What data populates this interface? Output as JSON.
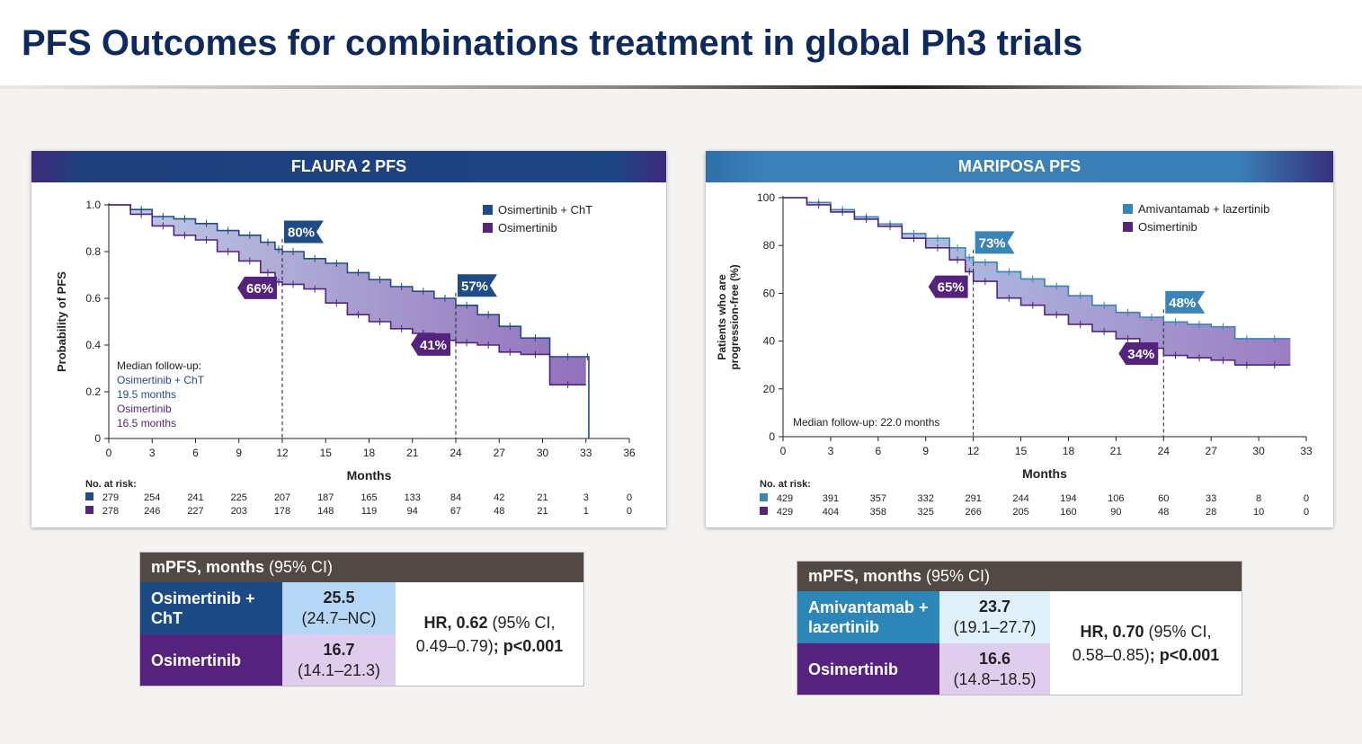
{
  "page": {
    "title": "PFS Outcomes for combinations treatment in global Ph3 trials"
  },
  "colors": {
    "title": "#0e2a5c",
    "flaura_arm1": "#1f4c86",
    "flaura_arm2": "#55237d",
    "mariposa_arm1": "#3a84b8",
    "mariposa_arm2": "#55237d",
    "table_header": "#524945"
  },
  "chart_data": [
    {
      "type": "line",
      "subtype": "kaplan-meier",
      "title": "FLAURA 2 PFS",
      "xlabel": "Months",
      "ylabel": "Probability of PFS",
      "xlim": [
        0,
        36
      ],
      "ylim": [
        0,
        1.0
      ],
      "xticks": [
        0,
        3,
        6,
        9,
        12,
        15,
        18,
        21,
        24,
        27,
        30,
        33,
        36
      ],
      "yticks": [
        "0",
        "0.2",
        "0.4",
        "0.6",
        "0.8",
        "1.0"
      ],
      "ytick_values": [
        0,
        0.2,
        0.4,
        0.6,
        0.8,
        1.0
      ],
      "reference_lines_x": [
        12,
        24
      ],
      "legend_position": "top-right",
      "series": [
        {
          "name": "Osimertinib + ChT",
          "x": [
            0,
            1.5,
            3,
            4.5,
            6,
            7.5,
            9,
            10.5,
            11.5,
            12,
            13.5,
            15,
            16.5,
            18,
            19.5,
            21,
            22.5,
            24,
            25.5,
            27,
            28.5,
            30.5,
            33,
            33.2
          ],
          "y": [
            1.0,
            0.98,
            0.95,
            0.94,
            0.92,
            0.89,
            0.87,
            0.84,
            0.81,
            0.8,
            0.77,
            0.75,
            0.71,
            0.68,
            0.65,
            0.63,
            0.6,
            0.57,
            0.53,
            0.48,
            0.43,
            0.35,
            0.35,
            0.0
          ]
        },
        {
          "name": "Osimertinib",
          "x": [
            0,
            1.5,
            3,
            4.5,
            6,
            7.5,
            9,
            10.5,
            11.5,
            12,
            13.5,
            15,
            16.5,
            18,
            19.5,
            21,
            22.5,
            24,
            25.5,
            27,
            28.5,
            30.5,
            33
          ],
          "y": [
            1.0,
            0.96,
            0.91,
            0.87,
            0.85,
            0.8,
            0.76,
            0.71,
            0.67,
            0.66,
            0.64,
            0.58,
            0.53,
            0.5,
            0.47,
            0.45,
            0.42,
            0.41,
            0.4,
            0.37,
            0.36,
            0.23,
            0.23
          ]
        }
      ],
      "annotations": [
        {
          "text": "80%",
          "series": 0,
          "x": 12
        },
        {
          "text": "66%",
          "series": 1,
          "x": 12
        },
        {
          "text": "57%",
          "series": 0,
          "x": 24
        },
        {
          "text": "41%",
          "series": 1,
          "x": 24
        }
      ],
      "follow_up_lines": [
        "Median follow-up:",
        "Osimertinib + ChT",
        "19.5 months",
        "Osimertinib",
        "16.5 months"
      ],
      "at_risk": {
        "label": "No. at risk:",
        "times": [
          0,
          3,
          6,
          9,
          12,
          15,
          18,
          21,
          24,
          27,
          30,
          33,
          36
        ],
        "rows": [
          {
            "series": 0,
            "values": [
              "279",
              "254",
              "241",
              "225",
              "207",
              "187",
              "165",
              "133",
              "84",
              "42",
              "21",
              "3",
              "0"
            ]
          },
          {
            "series": 1,
            "values": [
              "278",
              "246",
              "227",
              "203",
              "178",
              "148",
              "119",
              "94",
              "67",
              "48",
              "21",
              "1",
              "0"
            ]
          }
        ]
      }
    },
    {
      "type": "line",
      "subtype": "kaplan-meier",
      "title": "MARIPOSA PFS",
      "xlabel": "Months",
      "ylabel": "Patients who are progression-free (%)",
      "ylabel_lines": [
        "Patients who are",
        "progression-free (%)"
      ],
      "xlim": [
        0,
        33
      ],
      "ylim": [
        0,
        100
      ],
      "xticks": [
        0,
        3,
        6,
        9,
        12,
        15,
        18,
        21,
        24,
        27,
        30,
        33
      ],
      "yticks": [
        "0",
        "20",
        "40",
        "60",
        "80",
        "100"
      ],
      "ytick_values": [
        0,
        20,
        40,
        60,
        80,
        100
      ],
      "reference_lines_x": [
        12,
        24
      ],
      "legend_position": "top-right",
      "series": [
        {
          "name": "Amivantamab + lazertinib",
          "x": [
            0,
            1.5,
            3,
            4.5,
            6,
            7.5,
            9,
            10.5,
            11.5,
            12,
            13.5,
            15,
            16.5,
            18,
            19.5,
            21,
            22.5,
            24,
            25.5,
            27,
            28.5,
            30,
            32
          ],
          "y": [
            100,
            98,
            95,
            92,
            89,
            85,
            83,
            79,
            75,
            73,
            69,
            66,
            63,
            59,
            55,
            52,
            50,
            48,
            47,
            46,
            41,
            41,
            41
          ]
        },
        {
          "name": "Osimertinib",
          "x": [
            0,
            1.5,
            3,
            4.5,
            6,
            7.5,
            9,
            10.5,
            11.5,
            12,
            13.5,
            15,
            16.5,
            18,
            19.5,
            21,
            22.5,
            24,
            25.5,
            27,
            28.5,
            30,
            32
          ],
          "y": [
            100,
            97,
            94,
            91,
            88,
            83,
            79,
            74,
            69,
            65,
            58,
            55,
            51,
            47,
            44,
            41,
            37,
            34,
            33,
            32,
            30,
            30,
            30
          ]
        }
      ],
      "annotations": [
        {
          "text": "73%",
          "series": 0,
          "x": 12
        },
        {
          "text": "65%",
          "series": 1,
          "x": 12
        },
        {
          "text": "48%",
          "series": 0,
          "x": 24
        },
        {
          "text": "34%",
          "series": 1,
          "x": 24
        }
      ],
      "follow_up_lines": [
        "Median follow-up: 22.0 months"
      ],
      "at_risk": {
        "label": "No. at risk:",
        "times": [
          0,
          3,
          6,
          9,
          12,
          15,
          18,
          21,
          24,
          27,
          30,
          33
        ],
        "rows": [
          {
            "series": 0,
            "values": [
              "429",
              "391",
              "357",
              "332",
              "291",
              "244",
              "194",
              "106",
              "60",
              "33",
              "8",
              "0"
            ]
          },
          {
            "series": 1,
            "values": [
              "429",
              "404",
              "358",
              "325",
              "266",
              "205",
              "160",
              "90",
              "48",
              "28",
              "10",
              "0"
            ]
          }
        ]
      }
    }
  ],
  "tables": [
    {
      "header_bold": "mPFS, months",
      "header_rest": " (95% CI)",
      "rows": [
        {
          "name": "Osimertinib + ChT",
          "median": "25.5",
          "ci": "(24.7–NC)"
        },
        {
          "name": "Osimertinib",
          "median": "16.7",
          "ci": "(14.1–21.3)"
        }
      ],
      "hr_bold": "HR, 0.62",
      "hr_ci": " (95% CI, 0.49–0.79)",
      "hr_p": "; p<0.001"
    },
    {
      "header_bold": "mPFS, months",
      "header_rest": " (95% CI)",
      "rows": [
        {
          "name": "Amivantamab + lazertinib",
          "median": "23.7",
          "ci": "(19.1–27.7)"
        },
        {
          "name": "Osimertinib",
          "median": "16.6",
          "ci": "(14.8–18.5)"
        }
      ],
      "hr_bold": "HR, 0.70",
      "hr_ci": " (95% CI, 0.58–0.85)",
      "hr_p": "; p<0.001"
    }
  ]
}
